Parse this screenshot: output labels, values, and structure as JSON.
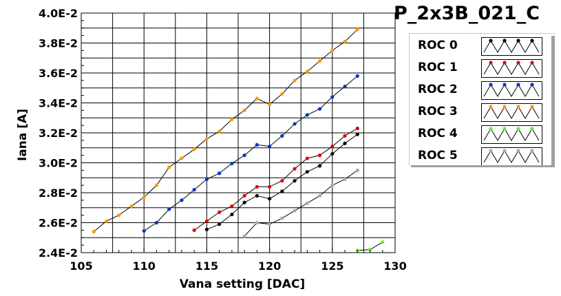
{
  "chart_data": {
    "type": "line",
    "title": "P_2x3B_021_C",
    "xlabel": "Vana setting [DAC]",
    "ylabel": "Iana [A]",
    "xlim": [
      105,
      130
    ],
    "ylim": [
      0.024,
      0.04
    ],
    "xticks": [
      105,
      110,
      115,
      120,
      125,
      130
    ],
    "yticks": [
      "2.4E-2",
      "2.6E-2",
      "2.8E-2",
      "3.0E-2",
      "3.2E-2",
      "3.4E-2",
      "3.6E-2",
      "3.8E-2",
      "4.0E-2"
    ],
    "grid": true,
    "legend_position": "right",
    "series": [
      {
        "name": "ROC 0",
        "color": "#000000",
        "x": [
          115,
          116,
          117,
          118,
          119,
          120,
          121,
          122,
          123,
          124,
          125,
          126,
          127
        ],
        "y": [
          0.02555,
          0.0259,
          0.02655,
          0.02735,
          0.0278,
          0.0276,
          0.0281,
          0.0288,
          0.0294,
          0.0298,
          0.0306,
          0.0313,
          0.0319
        ]
      },
      {
        "name": "ROC 1",
        "color": "#e00000",
        "x": [
          114,
          115,
          116,
          117,
          118,
          119,
          120,
          121,
          122,
          123,
          124,
          125,
          126,
          127
        ],
        "y": [
          0.0255,
          0.0261,
          0.0267,
          0.0271,
          0.0278,
          0.0284,
          0.0284,
          0.0288,
          0.0296,
          0.0303,
          0.0305,
          0.0311,
          0.0318,
          0.0323
        ]
      },
      {
        "name": "ROC 2",
        "color": "#0033cc",
        "x": [
          110,
          111,
          112,
          113,
          114,
          115,
          116,
          117,
          118,
          119,
          120,
          121,
          122,
          123,
          124,
          125,
          126,
          127
        ],
        "y": [
          0.02545,
          0.026,
          0.0269,
          0.0275,
          0.0282,
          0.0289,
          0.0293,
          0.02995,
          0.0305,
          0.0312,
          0.0311,
          0.0318,
          0.0326,
          0.0332,
          0.0336,
          0.0344,
          0.0351,
          0.0358
        ]
      },
      {
        "name": "ROC 3",
        "color": "#ff9900",
        "x": [
          106,
          107,
          108,
          109,
          110,
          111,
          112,
          113,
          114,
          115,
          116,
          117,
          118,
          119,
          120,
          121,
          122,
          123,
          124,
          125,
          126,
          127
        ],
        "y": [
          0.0254,
          0.0261,
          0.0265,
          0.0271,
          0.0277,
          0.0285,
          0.0297,
          0.0303,
          0.0309,
          0.0316,
          0.0321,
          0.0329,
          0.0335,
          0.0343,
          0.0339,
          0.0346,
          0.0355,
          0.0361,
          0.0368,
          0.0375,
          0.0381,
          0.0389
        ]
      },
      {
        "name": "ROC 4",
        "color": "#66ee22",
        "x": [
          127,
          128,
          129
        ],
        "y": [
          0.02415,
          0.0242,
          0.0247
        ]
      },
      {
        "name": "ROC 5",
        "color": "#aaaaaa",
        "x": [
          118,
          119,
          120,
          121,
          122,
          123,
          124,
          125,
          126,
          127
        ],
        "y": [
          0.0251,
          0.026,
          0.0259,
          0.0263,
          0.0268,
          0.0273,
          0.0278,
          0.0285,
          0.0289,
          0.0295
        ]
      }
    ]
  }
}
